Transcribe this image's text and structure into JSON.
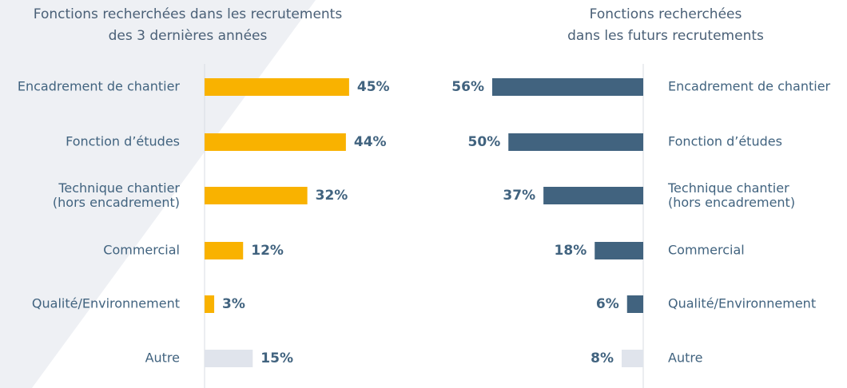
{
  "chart_data": [
    {
      "type": "bar",
      "orientation": "horizontal",
      "title": [
        "Fonctions recherchées dans les recrutements",
        "des 3 dernières années"
      ],
      "categories": [
        "Encadrement de chantier",
        "Fonction d’études",
        "Technique chantier\n(hors encadrement)",
        "Commercial",
        "Qualité/Environnement",
        "Autre"
      ],
      "values": [
        45,
        44,
        32,
        12,
        3,
        15
      ],
      "value_labels": [
        "45%",
        "44%",
        "32%",
        "12%",
        "3%",
        "15%"
      ],
      "colors": [
        "#f9b200",
        "#f9b200",
        "#f9b200",
        "#f9b200",
        "#f9b200",
        "#e0e4ec"
      ]
    },
    {
      "type": "bar",
      "orientation": "horizontal",
      "title": [
        "Fonctions recherchées",
        "dans les futurs recrutements"
      ],
      "categories": [
        "Encadrement de chantier",
        "Fonction d’études",
        "Technique chantier\n(hors encadrement)",
        "Commercial",
        "Qualité/Environnement",
        "Autre"
      ],
      "values": [
        56,
        50,
        37,
        18,
        6,
        8
      ],
      "value_labels": [
        "56%",
        "50%",
        "37%",
        "18%",
        "6%",
        "8%"
      ],
      "colors": [
        "#41637f",
        "#41637f",
        "#41637f",
        "#41637f",
        "#41637f",
        "#e0e4ec"
      ]
    }
  ]
}
